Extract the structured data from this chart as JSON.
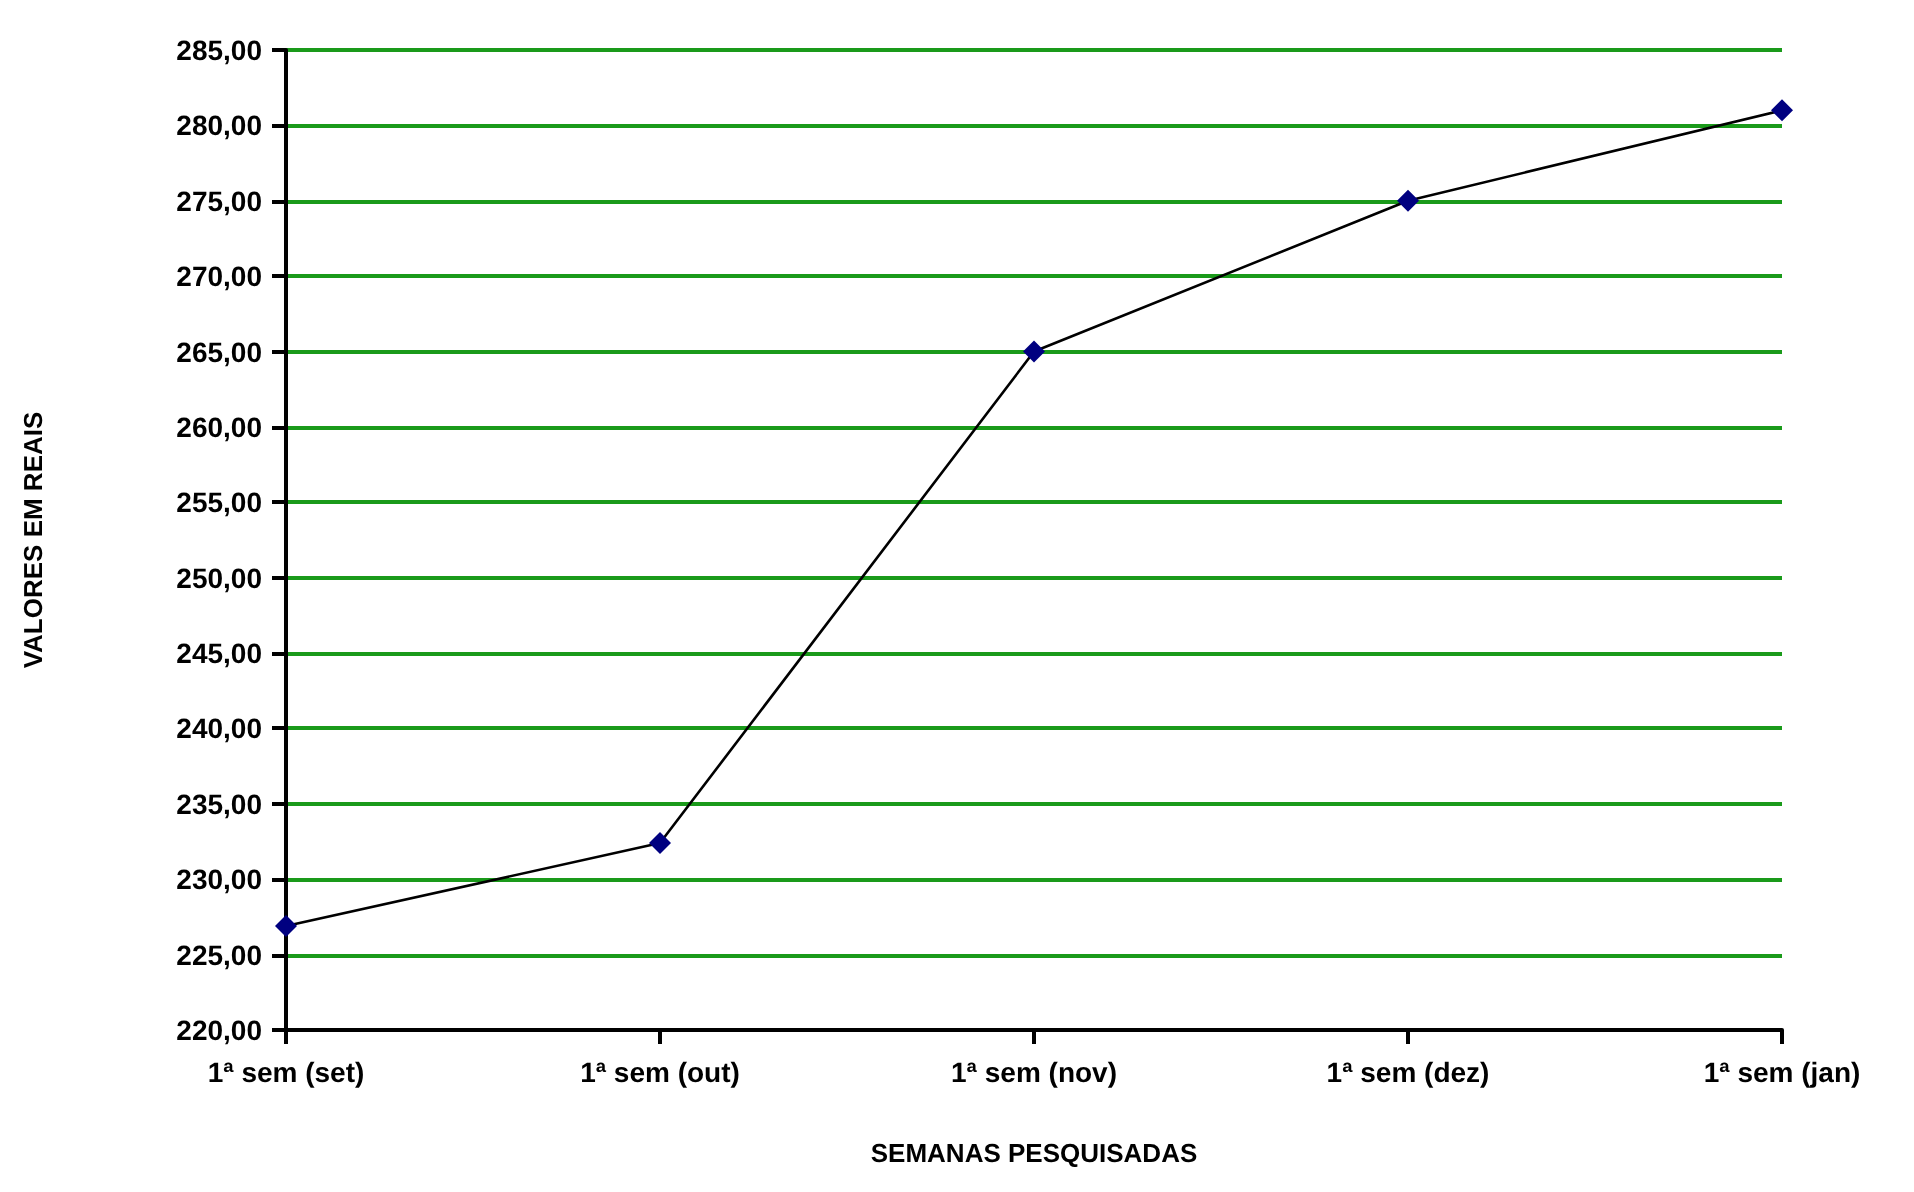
{
  "chart_data": {
    "type": "line",
    "xlabel": "SEMANAS PESQUISADAS",
    "ylabel": "VALORES EM REAIS",
    "categories": [
      "1ª sem (set)",
      "1ª sem (out)",
      "1ª sem (nov)",
      "1ª sem (dez)",
      "1ª sem (jan)"
    ],
    "series": [
      {
        "color": "#000080",
        "values": [
          226.9,
          232.4,
          265,
          275,
          281
        ]
      }
    ],
    "ylim": [
      220,
      285
    ],
    "yticks": [
      {
        "value": 220,
        "label": "220,00"
      },
      {
        "value": 225,
        "label": "225,00"
      },
      {
        "value": 230,
        "label": "230,00"
      },
      {
        "value": 235,
        "label": "235,00"
      },
      {
        "value": 240,
        "label": "240,00"
      },
      {
        "value": 245,
        "label": "245,00"
      },
      {
        "value": 250,
        "label": "250,00"
      },
      {
        "value": 255,
        "label": "255,00"
      },
      {
        "value": 260,
        "label": "260,00"
      },
      {
        "value": 265,
        "label": "265,00"
      },
      {
        "value": 270,
        "label": "270,00"
      },
      {
        "value": 275,
        "label": "275,00"
      },
      {
        "value": 280,
        "label": "280,00"
      },
      {
        "value": 285,
        "label": "285,00"
      }
    ],
    "grid": "y",
    "marker": "diamond",
    "line_style": "solid"
  }
}
